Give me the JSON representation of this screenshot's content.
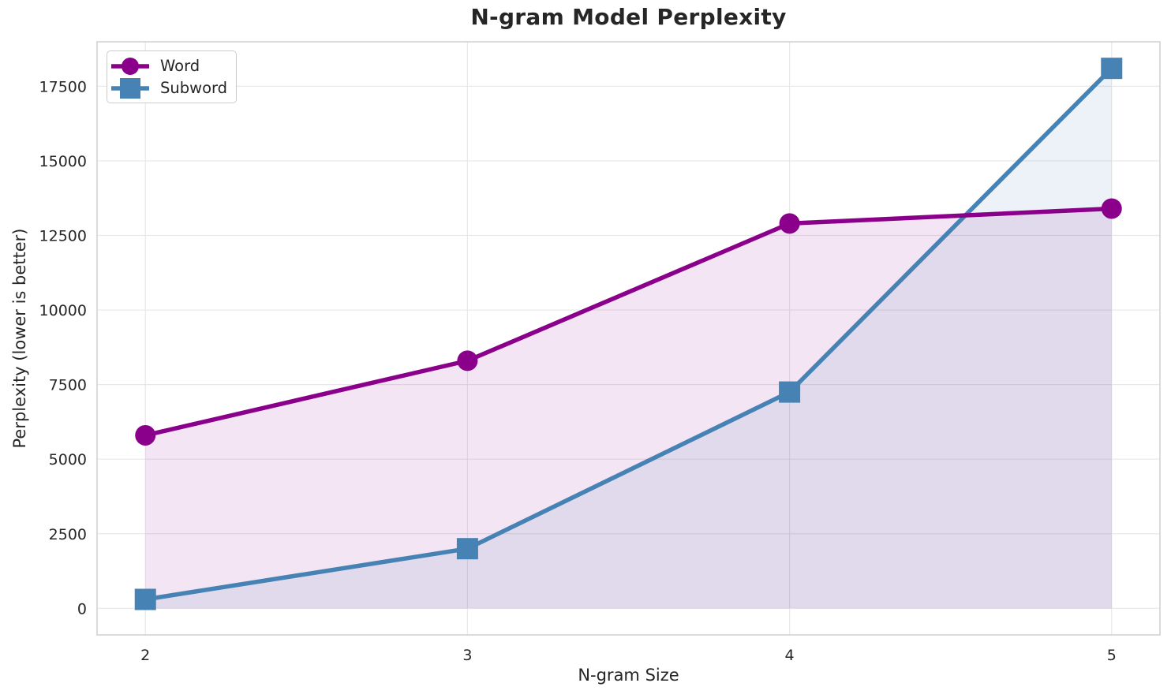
{
  "chart_data": {
    "type": "line",
    "title": "N-gram Model Perplexity",
    "xlabel": "N-gram Size",
    "ylabel": "Perplexity (lower is better)",
    "x": [
      2,
      3,
      4,
      5
    ],
    "series": [
      {
        "name": "Word",
        "values": [
          5800,
          8300,
          12900,
          13400
        ],
        "color": "#8B008B",
        "marker": "circle",
        "fill_alpha": 0.1
      },
      {
        "name": "Subword",
        "values": [
          300,
          2000,
          7250,
          18100
        ],
        "color": "#4682B4",
        "marker": "square",
        "fill_alpha": 0.1
      }
    ],
    "xticks": [
      2,
      3,
      4,
      5
    ],
    "yticks": [
      0,
      2500,
      5000,
      7500,
      10000,
      12500,
      15000,
      17500
    ],
    "xlim": [
      1.85,
      5.15
    ],
    "ylim": [
      -890,
      18990
    ],
    "fill_to_zero": true,
    "grid": true,
    "legend_position": "upper-left",
    "colors": {
      "grid": "#e8e8e8",
      "spine": "#cfcfcf",
      "text": "#262626",
      "background": "#ffffff"
    }
  }
}
